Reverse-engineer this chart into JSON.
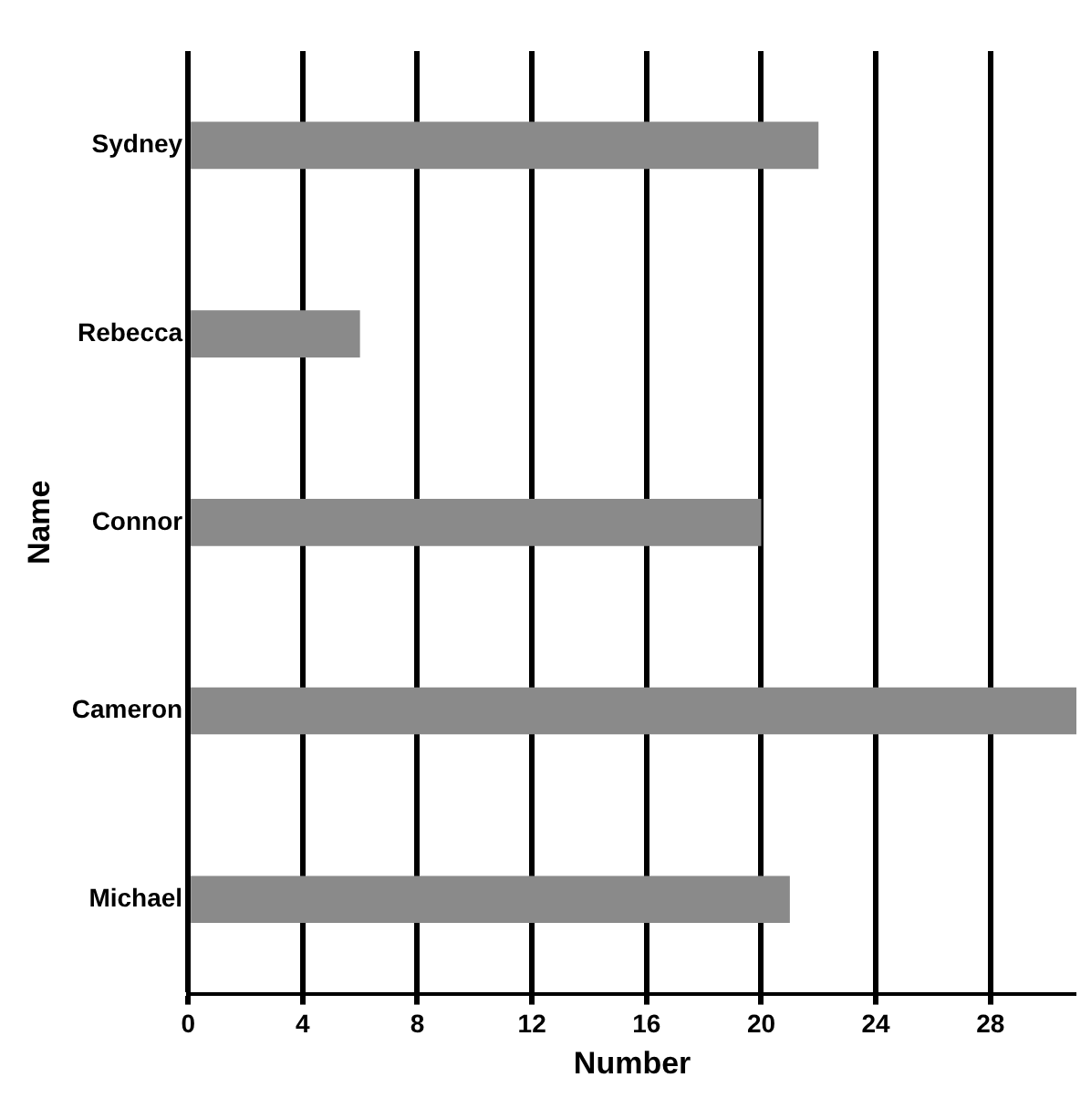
{
  "chart_data": {
    "type": "bar",
    "orientation": "horizontal",
    "xlabel": "Number",
    "ylabel": "Name",
    "categories": [
      "Sydney",
      "Rebecca",
      "Connor",
      "Cameron",
      "Michael"
    ],
    "values": [
      22,
      6,
      20,
      31,
      21
    ],
    "color": "#8a8a8a",
    "xlim": [
      0,
      31
    ],
    "xticks": [
      0,
      4,
      8,
      12,
      16,
      20,
      24,
      28
    ],
    "grid": "x"
  }
}
